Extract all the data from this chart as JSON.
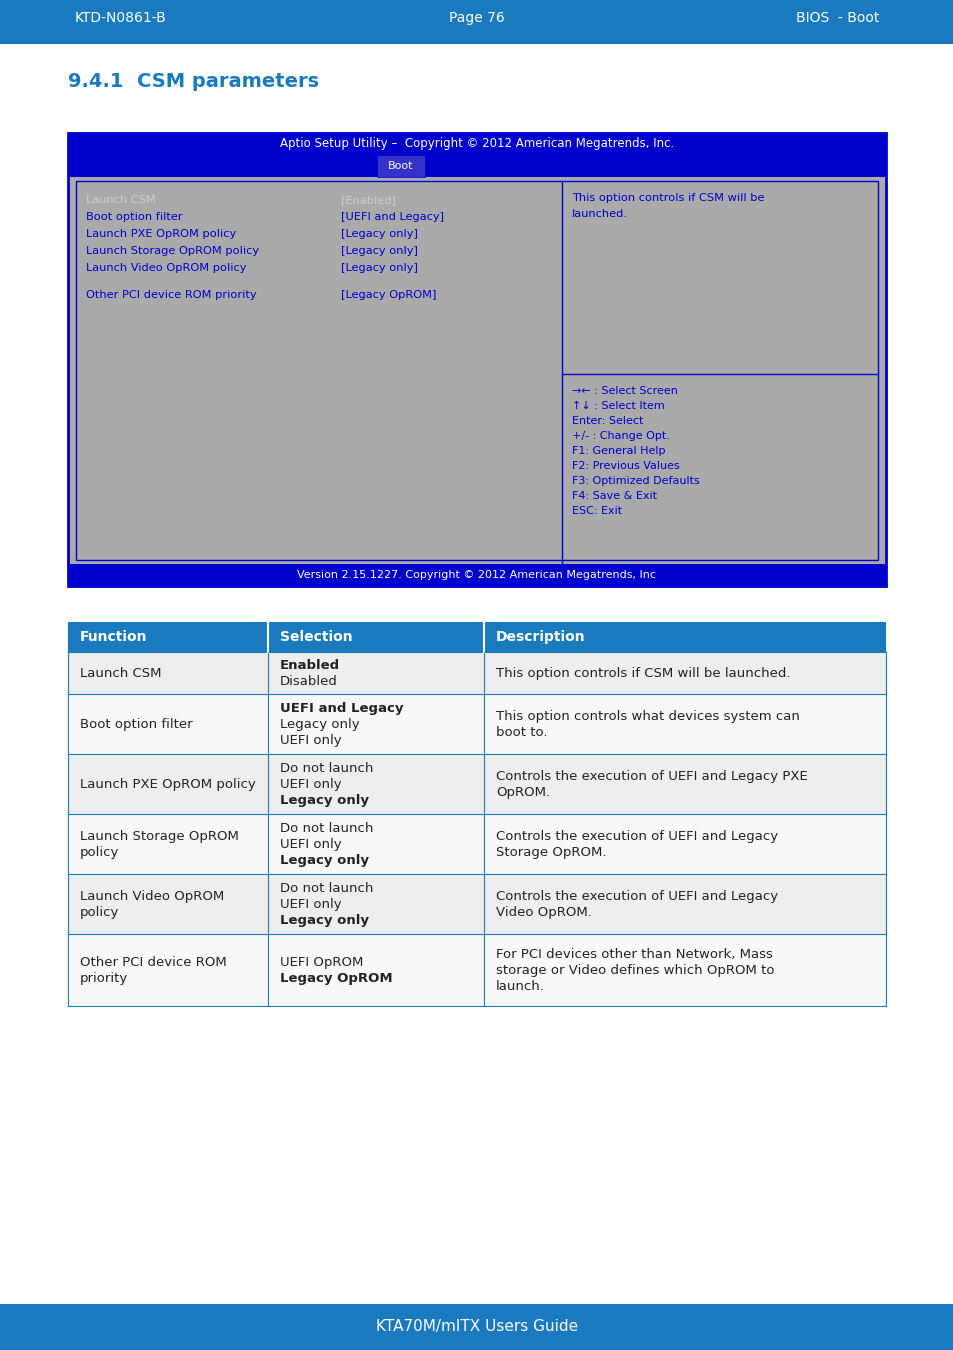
{
  "header_left": "KTD-N0861-B",
  "header_center": "Page 76",
  "header_right": "BIOS  - Boot",
  "header_bg": "#1a7abf",
  "header_text_color": "#ffffff",
  "section_title": "9.4.1  CSM parameters",
  "section_title_color": "#1a7abf",
  "bios_title": "Aptio Setup Utility –  Copyright © 2012 American Megatrends, Inc.",
  "bios_tab": "Boot",
  "bios_header_bg": "#0000cc",
  "bios_header_text": "#ffffff",
  "bios_body_bg": "#aaaaaa",
  "bios_border_color": "#0000cc",
  "bios_text_color": "#0000cc",
  "bios_right_panel_bg": "#aaaaaa",
  "bios_left_items": [
    "Launch CSM",
    "Boot option filter",
    "Launch PXE OpROM policy",
    "Launch Storage OpROM policy",
    "Launch Video OpROM policy",
    "",
    "Other PCI device ROM priority"
  ],
  "bios_right_items": [
    "[Enabled]",
    "[UEFI and Legacy]",
    "[Legacy only]",
    "[Legacy only]",
    "[Legacy only]",
    "",
    "[Legacy OpROM]"
  ],
  "bios_first_item_color": "#cccccc",
  "bios_desc": "This option controls if CSM will be\nlaunched.",
  "bios_keys": [
    "→← : Select Screen",
    "↑↓ : Select Item",
    "Enter: Select",
    "+/- : Change Opt.",
    "F1: General Help",
    "F2: Previous Values",
    "F3: Optimized Defaults",
    "F4: Save & Exit",
    "ESC: Exit"
  ],
  "bios_footer": "Version 2.15.1227. Copyright © 2012 American Megatrends, Inc",
  "table_header_bg": "#1a7abf",
  "table_header_text": "#ffffff",
  "table_col1": "Function",
  "table_col2": "Selection",
  "table_col3": "Description",
  "table_border_color": "#1a7abf",
  "table_rows": [
    {
      "function": "Launch CSM",
      "selection": "Enabled\nDisabled",
      "selection_bold_line": 0,
      "description": "This option controls if CSM will be launched."
    },
    {
      "function": "Boot option filter",
      "selection": "UEFI and Legacy\nLegacy only\nUEFI only",
      "selection_bold_line": 0,
      "description": "This option controls what devices system can\nboot to."
    },
    {
      "function": "Launch PXE OpROM policy",
      "selection": "Do not launch\nUEFI only\nLegacy only",
      "selection_bold_line": 2,
      "description": "Controls the execution of UEFI and Legacy PXE\nOpROM."
    },
    {
      "function": "Launch Storage OpROM\npolicy",
      "selection": "Do not launch\nUEFI only\nLegacy only",
      "selection_bold_line": 2,
      "description": "Controls the execution of UEFI and Legacy\nStorage OpROM."
    },
    {
      "function": "Launch Video OpROM\npolicy",
      "selection": "Do not launch\nUEFI only\nLegacy only",
      "selection_bold_line": 2,
      "description": "Controls the execution of UEFI and Legacy\nVideo OpROM."
    },
    {
      "function": "Other PCI device ROM\npriority",
      "selection": "UEFI OpROM\nLegacy OpROM",
      "selection_bold_line": 1,
      "description": "For PCI devices other than Network, Mass\nstorage or Video defines which OpROM to\nlaunch."
    }
  ],
  "footer_bg": "#1a7abf",
  "footer_text": "KTA70M/mITX Users Guide",
  "footer_text_color": "#ffffff",
  "page_bg": "#ffffff"
}
